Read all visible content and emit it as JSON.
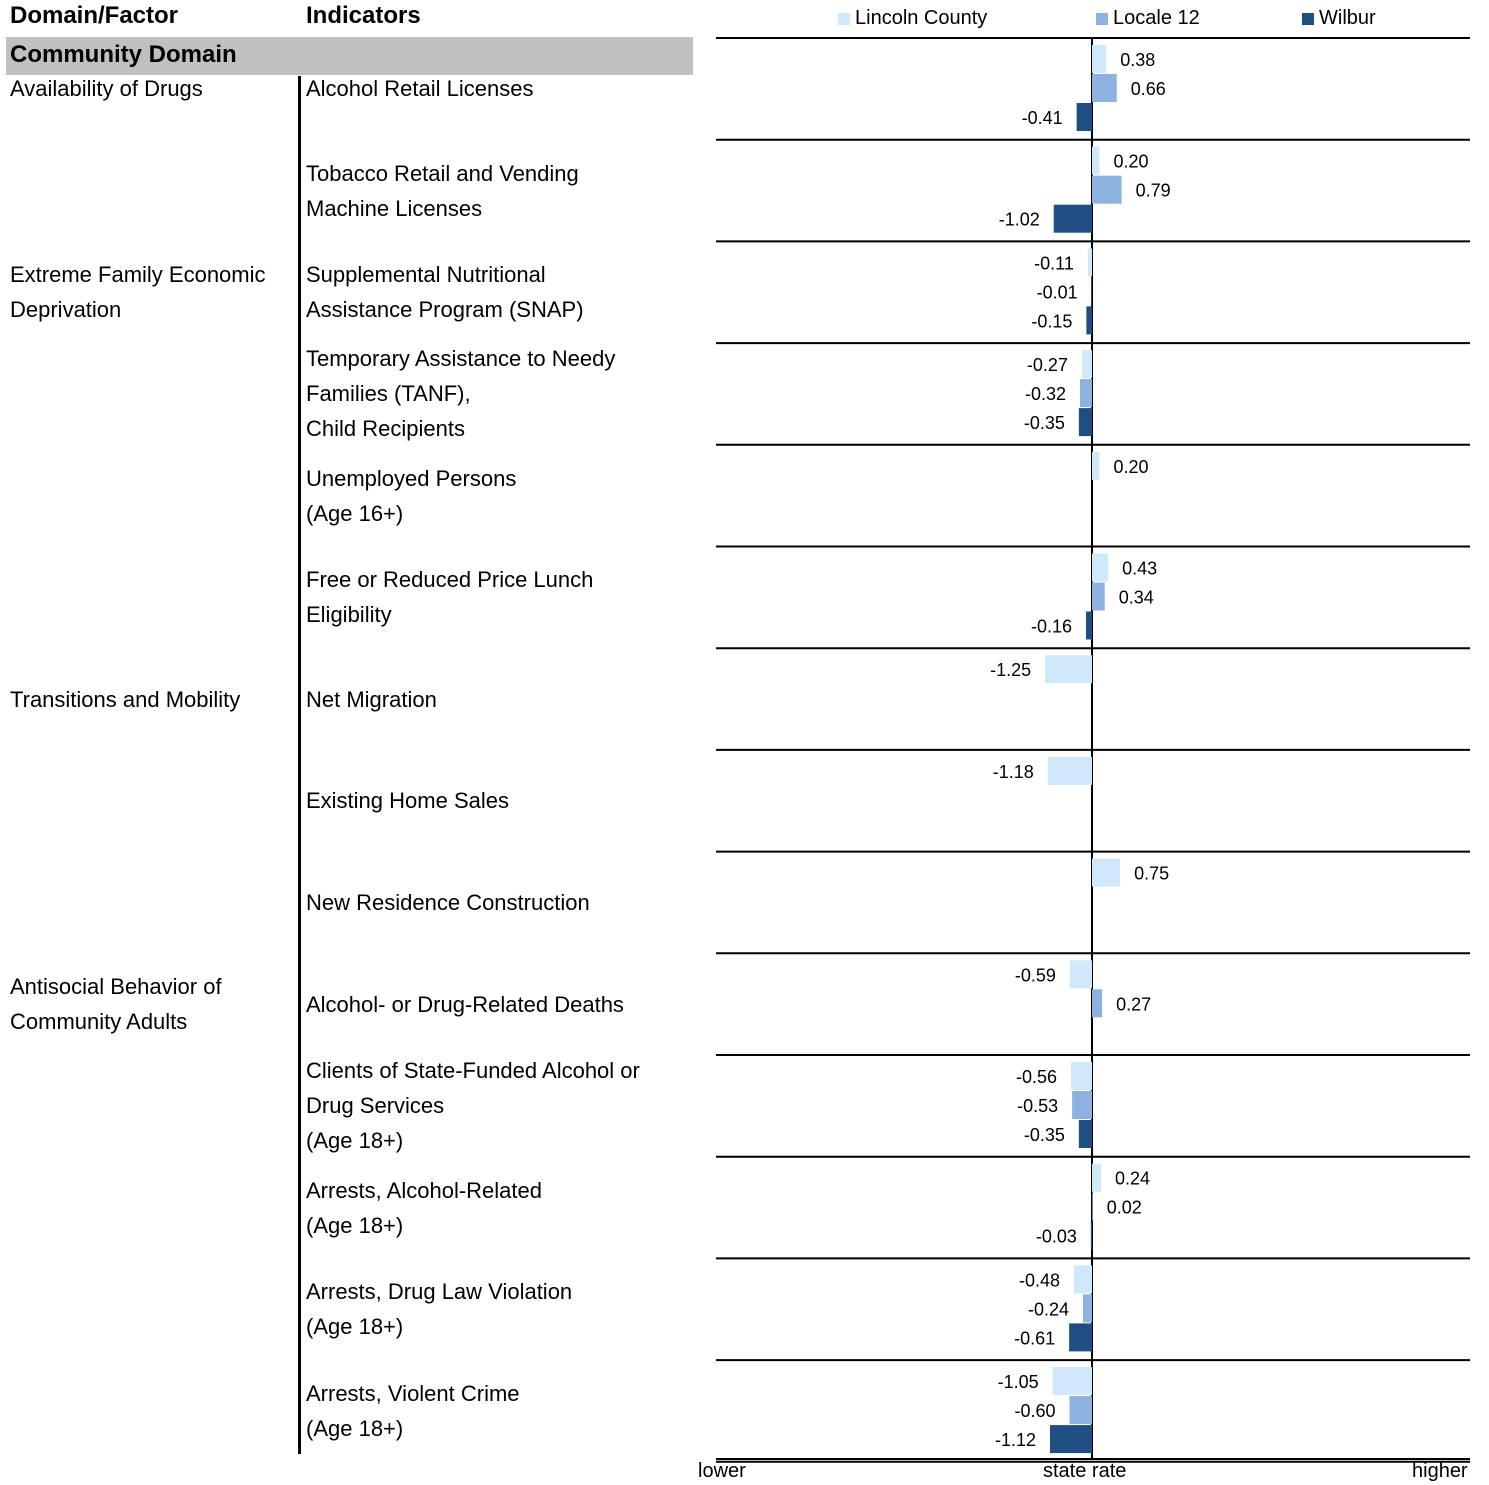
{
  "headers": {
    "domain_factor": "Domain/Factor",
    "indicators": "Indicators"
  },
  "section": "Community Domain",
  "factors": [
    {
      "label": "Availability of Drugs",
      "row": 0
    },
    {
      "label": "Extreme Family Economic\nDeprivation",
      "row": 2
    },
    {
      "label": "Transitions and Mobility",
      "row": 6
    },
    {
      "label": "Antisocial Behavior of\nCommunity Adults",
      "row": 9
    }
  ],
  "colors": {
    "lincoln": "#cfe9fa",
    "locale": "#8eb2e0",
    "wilbur": "#1f4e82",
    "section_bg": "#c0c0c0"
  },
  "chart_data": {
    "type": "bar",
    "orientation": "horizontal",
    "series": [
      {
        "name": "Lincoln County",
        "color": "#cfe9fa"
      },
      {
        "name": "Locale 12",
        "color": "#8eb2e0"
      },
      {
        "name": "Wilbur",
        "color": "#1f4e82"
      }
    ],
    "categories": [
      "Alcohol Retail Licenses",
      "Tobacco Retail and Vending\nMachine Licenses",
      "Supplemental Nutritional\nAssistance Program (SNAP)",
      "Temporary Assistance to Needy\nFamilies (TANF),\nChild Recipients",
      "Unemployed Persons\n(Age 16+)",
      "Free or Reduced Price Lunch\nEligibility",
      "Net Migration",
      "Existing Home Sales",
      "New Residence Construction",
      "Alcohol- or Drug-Related Deaths",
      "Clients of State-Funded Alcohol or\nDrug Services\n(Age 18+)",
      "Arrests, Alcohol-Related\n(Age 18+)",
      "Arrests, Drug Law Violation\n(Age 18+)",
      "Arrests, Violent Crime\n(Age 18+)"
    ],
    "values": [
      [
        0.38,
        0.66,
        -0.41
      ],
      [
        0.2,
        0.79,
        -1.02
      ],
      [
        -0.11,
        -0.01,
        -0.15
      ],
      [
        -0.27,
        -0.32,
        -0.35
      ],
      [
        0.2,
        null,
        null
      ],
      [
        0.43,
        0.34,
        -0.16
      ],
      [
        -1.25,
        null,
        null
      ],
      [
        -1.18,
        null,
        null
      ],
      [
        0.75,
        null,
        null
      ],
      [
        -0.59,
        0.27,
        null
      ],
      [
        -0.56,
        -0.53,
        -0.35
      ],
      [
        0.24,
        0.02,
        -0.03
      ],
      [
        -0.48,
        -0.24,
        -0.61
      ],
      [
        -1.05,
        -0.6,
        -1.12
      ]
    ],
    "labels": [
      [
        "0.38",
        "0.66",
        "-0.41"
      ],
      [
        "0.20",
        "0.79",
        "-1.02"
      ],
      [
        "-0.11",
        "-0.01",
        "-0.15"
      ],
      [
        "-0.27",
        "-0.32",
        "-0.35"
      ],
      [
        "0.20",
        null,
        null
      ],
      [
        "0.43",
        "0.34",
        "-0.16"
      ],
      [
        "-1.25",
        null,
        null
      ],
      [
        "-1.18",
        null,
        null
      ],
      [
        "0.75",
        null,
        null
      ],
      [
        "-0.59",
        "0.27",
        null
      ],
      [
        "-0.56",
        "-0.53",
        "-0.35"
      ],
      [
        "0.24",
        "0.02",
        "-0.03"
      ],
      [
        "-0.48",
        "-0.24",
        "-0.61"
      ],
      [
        "-1.05",
        "-0.60",
        "-1.12"
      ]
    ],
    "xlim": [
      -10,
      10
    ],
    "axis_labels": {
      "left": "lower",
      "center": "state rate",
      "right": "higher"
    },
    "legend": "top"
  }
}
